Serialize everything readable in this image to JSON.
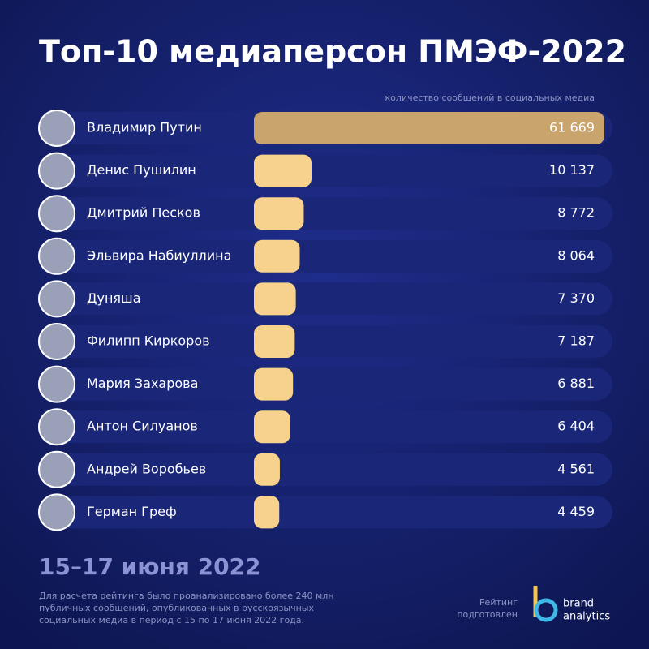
{
  "chart_data": {
    "type": "bar",
    "orientation": "horizontal",
    "title": "Топ-10 медиаперсон ПМЭФ-2022",
    "subtitle": "количество сообщений в социальных медиа",
    "categories": [
      "Владимир Путин",
      "Денис Пушилин",
      "Дмитрий Песков",
      "Эльвира Набиуллина",
      "Дуняша",
      "Филипп Киркоров",
      "Мария Захарова",
      "Антон Силуанов",
      "Андрей Воробьев",
      "Герман Греф"
    ],
    "values": [
      61669,
      10137,
      8772,
      8064,
      7370,
      7187,
      6881,
      6404,
      4561,
      4459
    ],
    "value_labels": [
      "61 669",
      "10 137",
      "8 772",
      "8 064",
      "7 370",
      "7 187",
      "6 881",
      "6 404",
      "4 561",
      "4 459"
    ],
    "colors": [
      "#c9a46c",
      "#f6d28c",
      "#f6d28c",
      "#f6d28c",
      "#f6d28c",
      "#f6d28c",
      "#f6d28c",
      "#f6d28c",
      "#f6d28c",
      "#f6d28c"
    ]
  },
  "footer": {
    "date": "15–17 июня 2022",
    "note": [
      "Для расчета рейтинга было проанализировано более 240 млн",
      "публичных сообщений, опубликованных в русскоязычных",
      "социальных медиа в период с 15 по 17 июня 2022 года."
    ],
    "credit": [
      "Рейтинг",
      "подготовлен"
    ],
    "logo": [
      "brand",
      "analytics"
    ]
  }
}
